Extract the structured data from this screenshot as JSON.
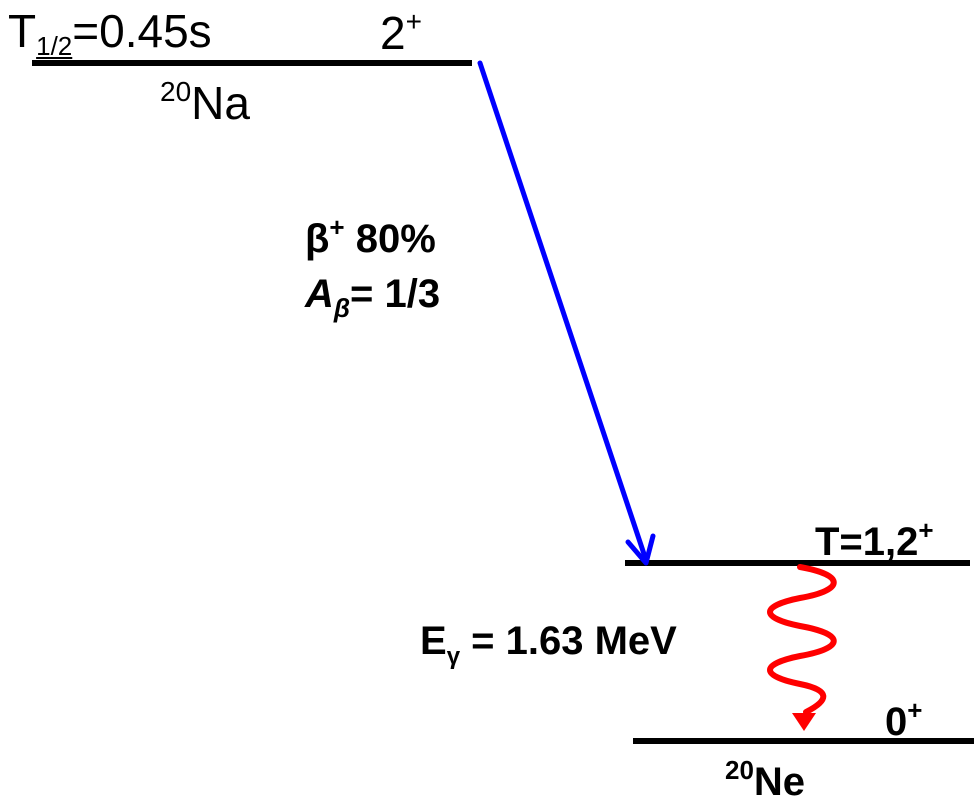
{
  "parent": {
    "halflife_sym": "T",
    "halflife_sub": "1/2",
    "halflife_val": "=0.45s",
    "spin_val": "2",
    "spin_parity": "+",
    "mass": "20",
    "element": "Na"
  },
  "decay": {
    "beta_sym": "β",
    "beta_sign": "+",
    "branching": " 80%",
    "asym_sym": "A",
    "asym_sub": "β",
    "asym_val": "= 1/3"
  },
  "excited_level": {
    "label": "T=1,2",
    "parity": "+"
  },
  "gamma": {
    "sym": "E",
    "sub": "γ",
    "value": " = 1.63 MeV"
  },
  "ground_level": {
    "spin": "0",
    "parity": "+",
    "mass": "20",
    "element": "Ne"
  },
  "colors": {
    "level": "#000000",
    "beta_arrow": "#0000ff",
    "gamma_arrow": "#ff0000"
  }
}
